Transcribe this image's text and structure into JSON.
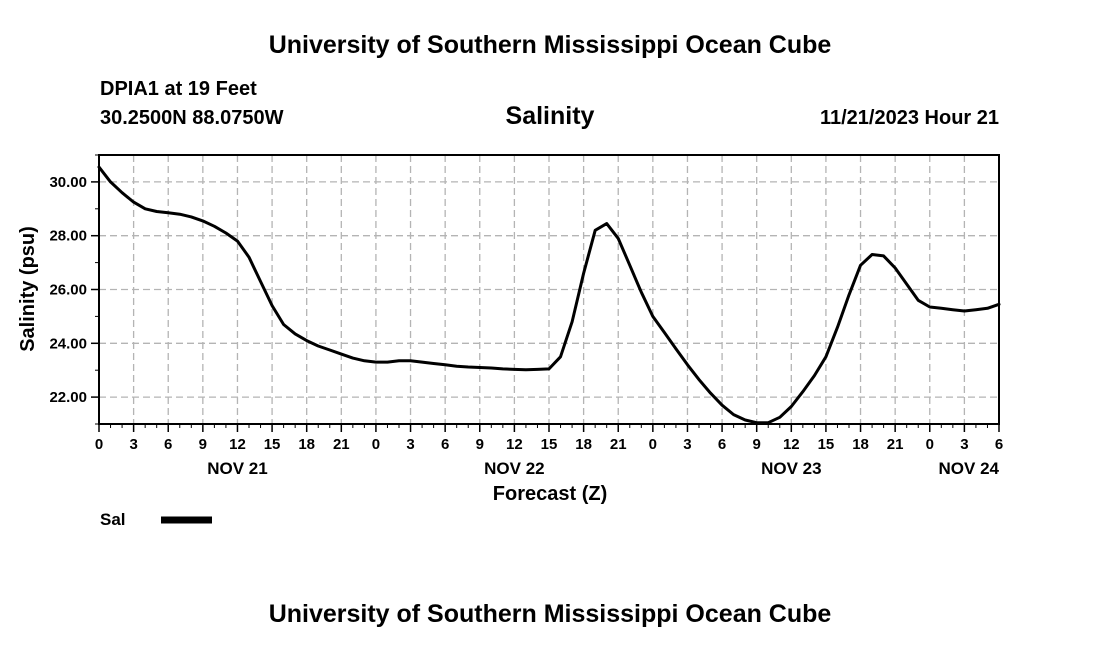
{
  "header": {
    "title": "University of Southern Mississippi Ocean Cube"
  },
  "footer": {
    "title": "University of Southern Mississippi Ocean Cube"
  },
  "station": {
    "name": "DPIA1 at 19 Feet",
    "coords": "30.2500N  88.0750W"
  },
  "forecast_time": "11/21/2023 Hour 21",
  "chart_data": {
    "type": "line",
    "title": "Salinity",
    "xlabel": "Forecast (Z)",
    "ylabel": "Salinity (psu)",
    "xlim": [
      0,
      78
    ],
    "ylim": [
      21,
      31
    ],
    "grid": true,
    "x_ticks": [
      0,
      3,
      6,
      9,
      12,
      15,
      18,
      21,
      24,
      27,
      30,
      33,
      36,
      39,
      42,
      45,
      48,
      51,
      54,
      57,
      60,
      63,
      66,
      69,
      72,
      75,
      78
    ],
    "x_tick_labels": [
      "0",
      "3",
      "6",
      "9",
      "12",
      "15",
      "18",
      "21",
      "0",
      "3",
      "6",
      "9",
      "12",
      "15",
      "18",
      "21",
      "0",
      "3",
      "6",
      "9",
      "12",
      "15",
      "18",
      "21",
      "0",
      "3",
      "6"
    ],
    "date_labels": [
      {
        "x": 12,
        "label": "NOV 21"
      },
      {
        "x": 36,
        "label": "NOV 22"
      },
      {
        "x": 60,
        "label": "NOV 23"
      },
      {
        "x": 78,
        "label": "NOV 24"
      }
    ],
    "y_ticks": [
      22,
      24,
      26,
      28,
      30
    ],
    "y_tick_labels": [
      "22.00",
      "24.00",
      "26.00",
      "28.00",
      "30.00"
    ],
    "legend_position": "bottom-left",
    "series": [
      {
        "name": "Sal",
        "color": "#000000",
        "x": [
          0,
          1,
          2,
          3,
          4,
          5,
          6,
          7,
          8,
          9,
          10,
          11,
          12,
          13,
          14,
          15,
          16,
          17,
          18,
          19,
          20,
          21,
          22,
          23,
          24,
          25,
          26,
          27,
          28,
          29,
          30,
          31,
          32,
          33,
          34,
          35,
          36,
          37,
          38,
          39,
          40,
          41,
          42,
          43,
          44,
          45,
          46,
          46.5,
          47,
          48,
          49,
          50,
          51,
          52,
          53,
          54,
          55,
          56,
          57,
          58,
          59,
          60,
          61,
          62,
          63,
          64,
          65,
          66,
          67,
          68,
          69,
          70,
          71,
          72,
          73,
          74,
          75,
          76,
          77,
          78
        ],
        "values": [
          30.55,
          30.0,
          29.6,
          29.25,
          29.0,
          28.9,
          28.85,
          28.8,
          28.7,
          28.55,
          28.35,
          28.1,
          27.8,
          27.2,
          26.3,
          25.4,
          24.7,
          24.35,
          24.1,
          23.9,
          23.75,
          23.6,
          23.45,
          23.35,
          23.3,
          23.3,
          23.35,
          23.35,
          23.3,
          23.25,
          23.2,
          23.15,
          23.12,
          23.1,
          23.08,
          23.05,
          23.03,
          23.02,
          23.03,
          23.05,
          23.5,
          24.8,
          26.6,
          28.2,
          28.45,
          27.9,
          26.9,
          26.4,
          25.9,
          25.0,
          24.4,
          23.8,
          23.2,
          22.65,
          22.15,
          21.7,
          21.35,
          21.15,
          21.05,
          21.05,
          21.25,
          21.65,
          22.2,
          22.8,
          23.5,
          24.6,
          25.8,
          26.9,
          27.3,
          27.25,
          26.8,
          26.2,
          25.6,
          25.35,
          25.3,
          25.25,
          25.2,
          25.25,
          25.3,
          25.45
        ]
      }
    ]
  }
}
